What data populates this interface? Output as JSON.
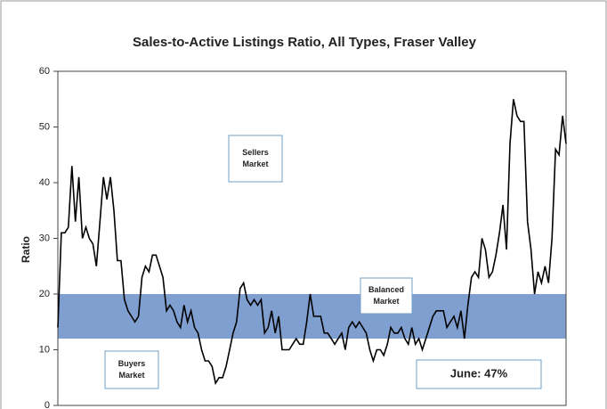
{
  "chart_data": {
    "type": "line",
    "title": "Sales-to-Active Listings Ratio, All Types, Fraser Valley",
    "y_label": "Ratio",
    "ylim": [
      0,
      60
    ],
    "yticks": [
      0,
      10,
      20,
      30,
      40,
      50,
      60
    ],
    "band": {
      "range": [
        12,
        20
      ],
      "color": "#7f9fd0"
    },
    "color": "#000000",
    "values": [
      14,
      31,
      31,
      32,
      43,
      33,
      41,
      30,
      32,
      30,
      29,
      25,
      33,
      41,
      37,
      41,
      35,
      26,
      26,
      19,
      17,
      16,
      15,
      16,
      23,
      25,
      24,
      27,
      27,
      25,
      23,
      17,
      18,
      17,
      15,
      14,
      18,
      15,
      17,
      14,
      13,
      10,
      8,
      8,
      7,
      4,
      5,
      5,
      7,
      10,
      13,
      15,
      21,
      22,
      19,
      18,
      19,
      18,
      19,
      13,
      14,
      17,
      13,
      16,
      10,
      10,
      10,
      11,
      12,
      11,
      11,
      15,
      20,
      16,
      16,
      16,
      13,
      13,
      12,
      11,
      12,
      13,
      10,
      14,
      15,
      14,
      15,
      14,
      13,
      10,
      8,
      10,
      10,
      9,
      11,
      14,
      13,
      13,
      14,
      12,
      11,
      14,
      11,
      12,
      10,
      12,
      14,
      16,
      17,
      17,
      17,
      14,
      15,
      16,
      14,
      17,
      12,
      18,
      23,
      24,
      23,
      30,
      28,
      23,
      24,
      27,
      31,
      36,
      28,
      47,
      55,
      52,
      51,
      51,
      33,
      28,
      20,
      24,
      22,
      25,
      22,
      30,
      46,
      45,
      52,
      47
    ],
    "annotations": [
      {
        "lines": [
          "Sellers",
          "Market"
        ]
      },
      {
        "lines": [
          "Balanced",
          "Market"
        ]
      },
      {
        "lines": [
          "Buyers",
          "Market"
        ]
      },
      {
        "lines": [
          "June: 47%"
        ]
      }
    ]
  }
}
